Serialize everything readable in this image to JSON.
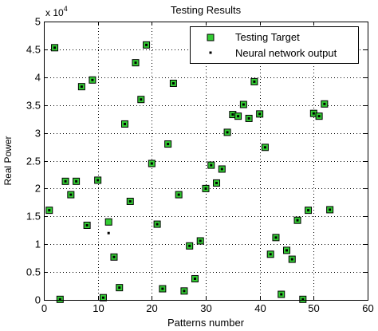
{
  "chart_data": {
    "type": "scatter",
    "title": "Testing Results",
    "xlabel": "Patterns number",
    "ylabel": "Real Power",
    "y_multiplier_label": "x 10",
    "y_multiplier_exp": "4",
    "xlim": [
      0,
      60
    ],
    "ylim": [
      0,
      5
    ],
    "x_ticks": [
      0,
      10,
      20,
      30,
      40,
      50,
      60
    ],
    "y_ticks": [
      0,
      0.5,
      1,
      1.5,
      2,
      2.5,
      3,
      3.5,
      4,
      4.5,
      5
    ],
    "x_tick_labels": [
      "0",
      "10",
      "20",
      "30",
      "40",
      "50",
      "60"
    ],
    "y_tick_labels": [
      "0",
      "0.5",
      "1",
      "1.5",
      "2",
      "2.5",
      "3",
      "3.5",
      "4",
      "4.5",
      "5"
    ],
    "grid": true,
    "legend_position": "top-right",
    "series": [
      {
        "name": "Testing Target",
        "marker": "square",
        "color": "#33cc33",
        "edge_color": "#000000",
        "x": [
          1,
          2,
          3,
          4,
          5,
          6,
          7,
          8,
          9,
          10,
          11,
          12,
          13,
          14,
          15,
          16,
          17,
          18,
          19,
          20,
          21,
          22,
          23,
          24,
          25,
          26,
          27,
          28,
          29,
          30,
          31,
          32,
          33,
          34,
          35,
          36,
          37,
          38,
          39,
          40,
          41,
          42,
          43,
          44,
          45,
          46,
          47,
          48,
          49,
          50,
          51,
          52,
          53
        ],
        "y": [
          1.61,
          4.53,
          0.01,
          2.13,
          1.89,
          2.13,
          3.83,
          1.34,
          3.95,
          2.15,
          0.04,
          1.4,
          0.77,
          0.22,
          3.16,
          1.77,
          4.26,
          3.6,
          4.58,
          2.45,
          1.36,
          0.2,
          2.8,
          3.89,
          1.89,
          0.16,
          0.97,
          0.38,
          1.06,
          2.0,
          2.42,
          2.1,
          2.35,
          3.01,
          3.33,
          3.3,
          3.51,
          3.26,
          3.92,
          3.34,
          2.74,
          0.82,
          1.12,
          0.1,
          0.89,
          0.73,
          1.43,
          0.01,
          1.61,
          3.35,
          3.3,
          3.52,
          1.62
        ]
      },
      {
        "name": "Neural network output",
        "marker": "dot",
        "color": "#000000",
        "x": [
          1,
          2,
          3,
          4,
          5,
          6,
          7,
          8,
          9,
          10,
          11,
          12,
          13,
          14,
          15,
          16,
          17,
          18,
          19,
          20,
          21,
          22,
          23,
          24,
          25,
          26,
          27,
          28,
          29,
          30,
          31,
          32,
          33,
          34,
          35,
          36,
          37,
          38,
          39,
          40,
          41,
          42,
          43,
          44,
          45,
          46,
          47,
          48,
          49,
          50,
          51,
          52,
          53
        ],
        "y": [
          1.61,
          4.53,
          0.01,
          2.13,
          1.89,
          2.13,
          3.83,
          1.34,
          3.95,
          2.15,
          0.04,
          1.2,
          0.77,
          0.22,
          3.16,
          1.77,
          4.26,
          3.6,
          4.58,
          2.45,
          1.36,
          0.2,
          2.8,
          3.89,
          1.89,
          0.16,
          0.97,
          0.38,
          1.06,
          2.0,
          2.42,
          2.1,
          2.35,
          3.01,
          3.33,
          3.3,
          3.51,
          3.26,
          3.92,
          3.34,
          2.74,
          0.82,
          1.12,
          0.1,
          0.89,
          0.73,
          1.43,
          0.01,
          1.61,
          3.35,
          3.3,
          3.52,
          1.62
        ]
      }
    ]
  }
}
